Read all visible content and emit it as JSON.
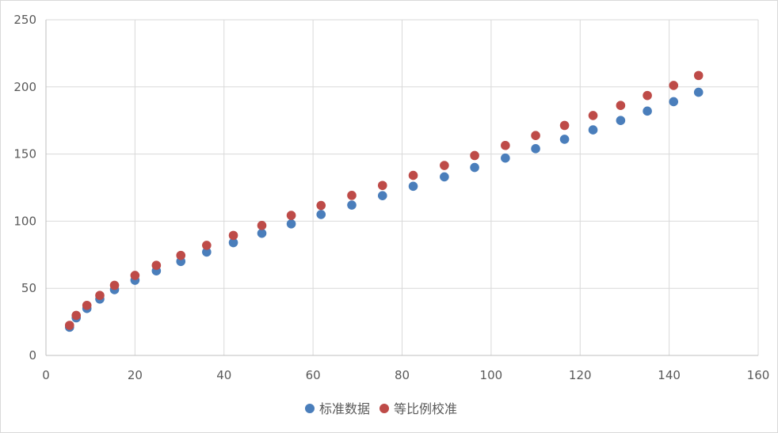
{
  "chart_data": {
    "type": "scatter",
    "title": "",
    "xlabel": "",
    "ylabel": "",
    "xlim": [
      0,
      160
    ],
    "ylim": [
      0,
      250
    ],
    "xticks": [
      0,
      20,
      40,
      60,
      80,
      100,
      120,
      140,
      160
    ],
    "yticks": [
      0,
      50,
      100,
      150,
      200,
      250
    ],
    "grid": true,
    "legend_position": "bottom",
    "series": [
      {
        "name": "标准数据",
        "color": "#4a7ebb",
        "x": [
          5.3,
          6.8,
          9.2,
          12.1,
          15.4,
          20,
          24.8,
          30.3,
          36.1,
          42.1,
          48.5,
          55.1,
          61.8,
          68.7,
          75.6,
          82.5,
          89.5,
          96.3,
          103.2,
          110,
          116.5,
          122.9,
          129.1,
          135.1,
          141,
          146.6
        ],
        "y": [
          21,
          28,
          35,
          42,
          49,
          56,
          63,
          70,
          77,
          84,
          91,
          98,
          105,
          112,
          119,
          126,
          133,
          140,
          147,
          154,
          161,
          168,
          175,
          182,
          189,
          196
        ]
      },
      {
        "name": "等比例校准",
        "color": "#be4b48",
        "x": [
          5.3,
          6.8,
          9.2,
          12.1,
          15.4,
          20,
          24.8,
          30.3,
          36.1,
          42.1,
          48.5,
          55.1,
          61.8,
          68.7,
          75.6,
          82.5,
          89.5,
          96.3,
          103.2,
          110,
          116.5,
          122.9,
          129.1,
          135.1,
          141,
          146.6
        ],
        "y": [
          22.4,
          29.8,
          37.3,
          44.7,
          52.2,
          59.6,
          67.1,
          74.5,
          82,
          89.4,
          96.8,
          104.3,
          111.7,
          119.2,
          126.6,
          134.1,
          141.5,
          148.9,
          156.4,
          163.8,
          171.3,
          178.7,
          186.2,
          193.6,
          201.1,
          208.5
        ]
      }
    ]
  }
}
